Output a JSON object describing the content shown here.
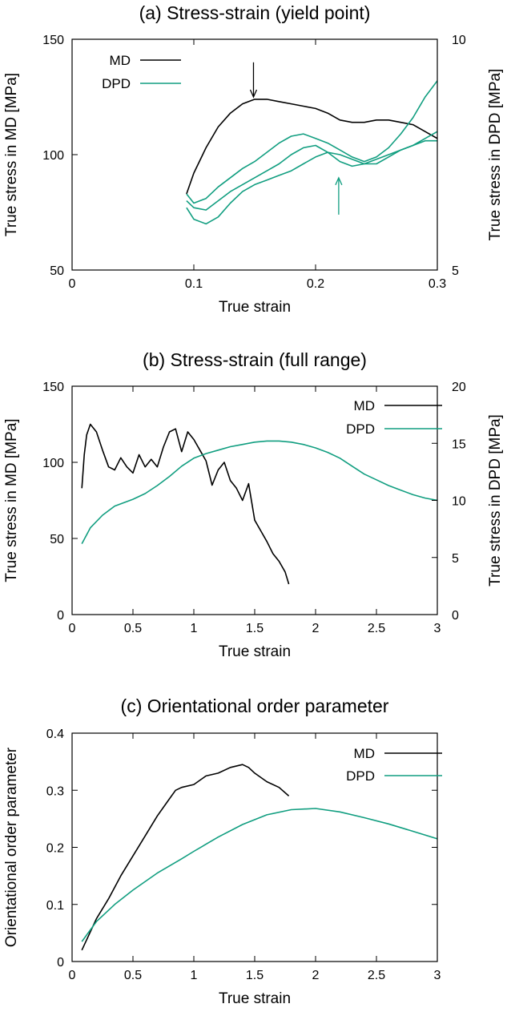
{
  "colors": {
    "md": "#000000",
    "dpd": "#119e80"
  },
  "chart_data": [
    {
      "type": "line",
      "title": "(a) Stress-strain (yield point)",
      "xlabel": "True strain",
      "ylabel": "True stress in MD [MPa]",
      "y2label": "True stress in DPD [MPa]",
      "xlim": [
        0,
        0.3
      ],
      "ylim": [
        50,
        150
      ],
      "y2lim": [
        5,
        10
      ],
      "xticks": [
        0,
        0.1,
        0.2,
        0.3
      ],
      "xtick_labels": [
        "0",
        "0.1",
        "0.2",
        "0.3"
      ],
      "yticks": [
        50,
        100,
        150
      ],
      "ytick_labels": [
        "50",
        "100",
        "150"
      ],
      "y2ticks": [
        5,
        10
      ],
      "y2tick_labels": [
        "5",
        "10"
      ],
      "legend": [
        "MD",
        "DPD"
      ],
      "legend_position": "top-left",
      "series": [
        {
          "name": "MD",
          "axis": "y",
          "color_key": "md",
          "x": [
            0.094,
            0.1,
            0.11,
            0.12,
            0.13,
            0.14,
            0.15,
            0.16,
            0.17,
            0.18,
            0.19,
            0.2,
            0.21,
            0.22,
            0.23,
            0.24,
            0.25,
            0.26,
            0.27,
            0.28,
            0.29,
            0.3
          ],
          "y": [
            83,
            92,
            103,
            112,
            118,
            122,
            124,
            124,
            123,
            122,
            121,
            120,
            118,
            115,
            114,
            114,
            115,
            115,
            114,
            113,
            110,
            107
          ]
        },
        {
          "name": "DPD",
          "axis": "y2",
          "color_key": "dpd",
          "x": [
            0.094,
            0.1,
            0.11,
            0.12,
            0.13,
            0.14,
            0.15,
            0.16,
            0.17,
            0.18,
            0.19,
            0.2,
            0.21,
            0.22,
            0.23,
            0.24,
            0.25,
            0.26,
            0.27,
            0.28,
            0.29,
            0.3
          ],
          "y": [
            6.65,
            6.45,
            6.55,
            6.8,
            7.0,
            7.2,
            7.35,
            7.55,
            7.75,
            7.9,
            7.95,
            7.85,
            7.75,
            7.6,
            7.45,
            7.35,
            7.45,
            7.65,
            7.95,
            8.3,
            8.75,
            9.1
          ]
        },
        {
          "name": "",
          "axis": "y2",
          "color_key": "dpd",
          "x": [
            0.094,
            0.1,
            0.11,
            0.12,
            0.13,
            0.14,
            0.15,
            0.16,
            0.17,
            0.18,
            0.19,
            0.2,
            0.21,
            0.22,
            0.23,
            0.24,
            0.25,
            0.26,
            0.27,
            0.28,
            0.29,
            0.3
          ],
          "y": [
            6.5,
            6.35,
            6.3,
            6.5,
            6.7,
            6.85,
            7.0,
            7.15,
            7.3,
            7.5,
            7.65,
            7.7,
            7.55,
            7.35,
            7.25,
            7.3,
            7.4,
            7.5,
            7.6,
            7.7,
            7.8,
            7.8
          ]
        },
        {
          "name": "",
          "axis": "y2",
          "color_key": "dpd",
          "x": [
            0.094,
            0.1,
            0.11,
            0.12,
            0.13,
            0.14,
            0.15,
            0.16,
            0.17,
            0.18,
            0.19,
            0.2,
            0.21,
            0.22,
            0.23,
            0.24,
            0.25,
            0.26,
            0.27,
            0.28,
            0.29,
            0.3
          ],
          "y": [
            6.35,
            6.1,
            6.0,
            6.15,
            6.45,
            6.7,
            6.85,
            6.95,
            7.05,
            7.15,
            7.3,
            7.45,
            7.55,
            7.5,
            7.4,
            7.3,
            7.3,
            7.45,
            7.6,
            7.7,
            7.85,
            8.0
          ]
        }
      ],
      "annotations": [
        {
          "type": "arrow",
          "direction": "down",
          "color_key": "md",
          "x": 0.149,
          "y_from": 140,
          "y_to": 125
        },
        {
          "type": "arrow",
          "direction": "up",
          "color_key": "dpd",
          "x": 0.219,
          "y_from": 74,
          "y_to": 90
        }
      ]
    },
    {
      "type": "line",
      "title": "(b) Stress-strain (full range)",
      "xlabel": "True strain",
      "ylabel": "True stress in MD [MPa]",
      "y2label": "True stress in DPD [MPa]",
      "xlim": [
        0,
        3
      ],
      "ylim": [
        0,
        150
      ],
      "y2lim": [
        0,
        20
      ],
      "xticks": [
        0,
        0.5,
        1,
        1.5,
        2,
        2.5,
        3
      ],
      "xtick_labels": [
        "0",
        "0.5",
        "1",
        "1.5",
        "2",
        "2.5",
        "3"
      ],
      "yticks": [
        0,
        50,
        100,
        150
      ],
      "ytick_labels": [
        "0",
        "50",
        "100",
        "150"
      ],
      "y2ticks": [
        0,
        5,
        10,
        15,
        20
      ],
      "y2tick_labels": [
        "0",
        "5",
        "10",
        "15",
        "20"
      ],
      "legend": [
        "MD",
        "DPD"
      ],
      "legend_position": "top-right",
      "series": [
        {
          "name": "MD",
          "axis": "y",
          "color_key": "md",
          "x": [
            0.08,
            0.1,
            0.12,
            0.15,
            0.2,
            0.25,
            0.3,
            0.35,
            0.4,
            0.45,
            0.5,
            0.55,
            0.6,
            0.65,
            0.7,
            0.75,
            0.8,
            0.85,
            0.9,
            0.95,
            1.0,
            1.05,
            1.1,
            1.15,
            1.2,
            1.25,
            1.3,
            1.35,
            1.4,
            1.45,
            1.5,
            1.55,
            1.6,
            1.65,
            1.7,
            1.75,
            1.78
          ],
          "y": [
            83,
            105,
            118,
            125,
            120,
            108,
            97,
            95,
            103,
            97,
            93,
            105,
            97,
            102,
            97,
            110,
            120,
            122,
            107,
            120,
            115,
            108,
            101,
            85,
            95,
            100,
            88,
            83,
            75,
            86,
            62,
            55,
            48,
            40,
            35,
            28,
            20
          ]
        },
        {
          "name": "DPD",
          "axis": "y2",
          "color_key": "dpd",
          "x": [
            0.08,
            0.15,
            0.25,
            0.35,
            0.5,
            0.6,
            0.7,
            0.8,
            0.9,
            1.0,
            1.1,
            1.2,
            1.3,
            1.4,
            1.5,
            1.6,
            1.7,
            1.8,
            1.9,
            2.0,
            2.1,
            2.2,
            2.3,
            2.4,
            2.5,
            2.6,
            2.7,
            2.8,
            2.9,
            3.0
          ],
          "y": [
            6.2,
            7.6,
            8.7,
            9.5,
            10.1,
            10.6,
            11.3,
            12.1,
            13.0,
            13.7,
            14.1,
            14.4,
            14.7,
            14.9,
            15.1,
            15.2,
            15.2,
            15.1,
            14.9,
            14.6,
            14.2,
            13.7,
            13.0,
            12.3,
            11.8,
            11.3,
            10.9,
            10.5,
            10.2,
            10.0
          ]
        }
      ]
    },
    {
      "type": "line",
      "title": "(c) Orientational order parameter",
      "xlabel": "True strain",
      "ylabel": "Orientational order parameter",
      "xlim": [
        0,
        3
      ],
      "ylim": [
        0,
        0.4
      ],
      "xticks": [
        0,
        0.5,
        1,
        1.5,
        2,
        2.5,
        3
      ],
      "xtick_labels": [
        "0",
        "0.5",
        "1",
        "1.5",
        "2",
        "2.5",
        "3"
      ],
      "yticks": [
        0,
        0.1,
        0.2,
        0.3,
        0.4
      ],
      "ytick_labels": [
        "0",
        "0.1",
        "0.2",
        "0.3",
        "0.4"
      ],
      "legend": [
        "MD",
        "DPD"
      ],
      "legend_position": "top-right",
      "series": [
        {
          "name": "MD",
          "axis": "y",
          "color_key": "md",
          "x": [
            0.08,
            0.2,
            0.3,
            0.4,
            0.5,
            0.6,
            0.7,
            0.8,
            0.85,
            0.9,
            1.0,
            1.1,
            1.2,
            1.3,
            1.4,
            1.45,
            1.5,
            1.6,
            1.7,
            1.78
          ],
          "y": [
            0.02,
            0.075,
            0.11,
            0.15,
            0.185,
            0.22,
            0.255,
            0.285,
            0.3,
            0.305,
            0.31,
            0.325,
            0.33,
            0.34,
            0.345,
            0.34,
            0.33,
            0.315,
            0.305,
            0.29
          ]
        },
        {
          "name": "DPD",
          "axis": "y",
          "color_key": "dpd",
          "x": [
            0.08,
            0.2,
            0.35,
            0.5,
            0.7,
            0.9,
            1.0,
            1.2,
            1.4,
            1.6,
            1.8,
            2.0,
            2.2,
            2.4,
            2.6,
            2.8,
            3.0
          ],
          "y": [
            0.035,
            0.07,
            0.1,
            0.125,
            0.155,
            0.18,
            0.193,
            0.218,
            0.24,
            0.257,
            0.266,
            0.268,
            0.262,
            0.252,
            0.241,
            0.228,
            0.215
          ]
        }
      ]
    }
  ]
}
